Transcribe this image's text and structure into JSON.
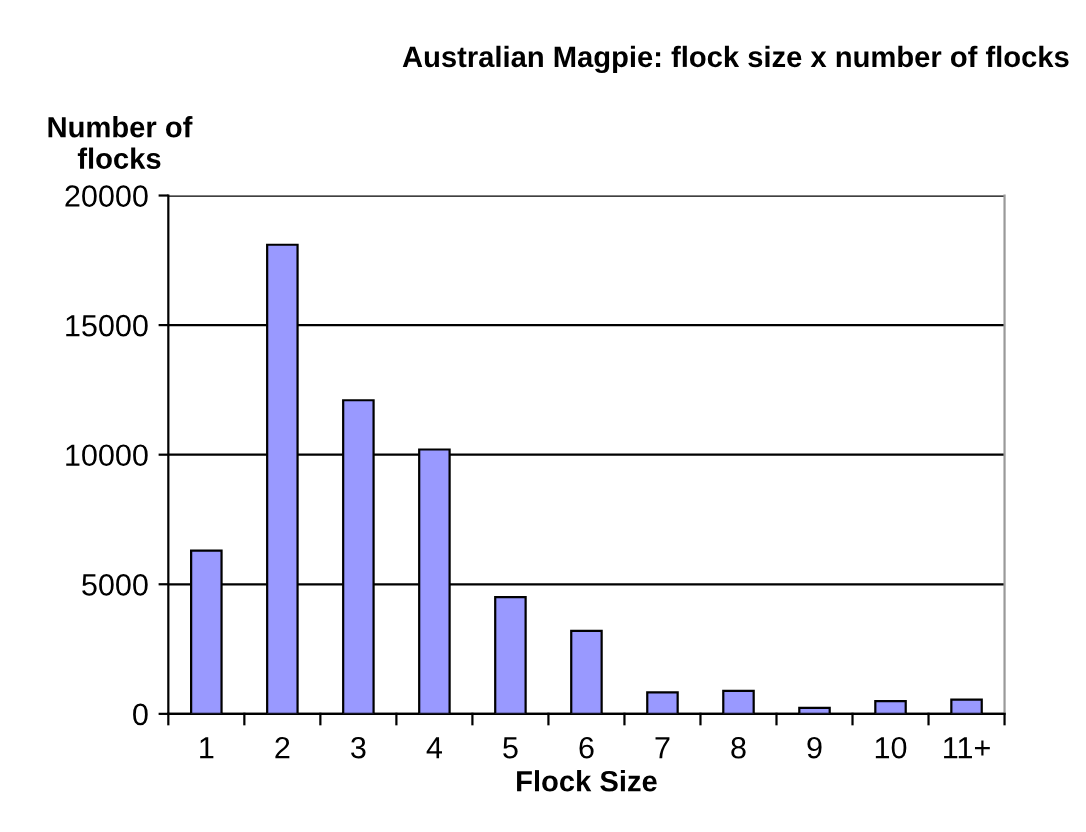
{
  "chart_data": {
    "type": "bar",
    "title": "Australian Magpie: flock size x number of flocks",
    "ylabel": "Number of\nflocks",
    "xlabel": "Flock Size",
    "categories": [
      "1",
      "2",
      "3",
      "4",
      "5",
      "6",
      "7",
      "8",
      "9",
      "10",
      "11+"
    ],
    "values": [
      6300,
      18100,
      12100,
      10200,
      4500,
      3200,
      830,
      890,
      230,
      490,
      550
    ],
    "color": "#9999ff",
    "ylim": [
      0,
      20000
    ],
    "yticks": [
      0,
      5000,
      10000,
      15000,
      20000
    ],
    "grid": "y"
  }
}
